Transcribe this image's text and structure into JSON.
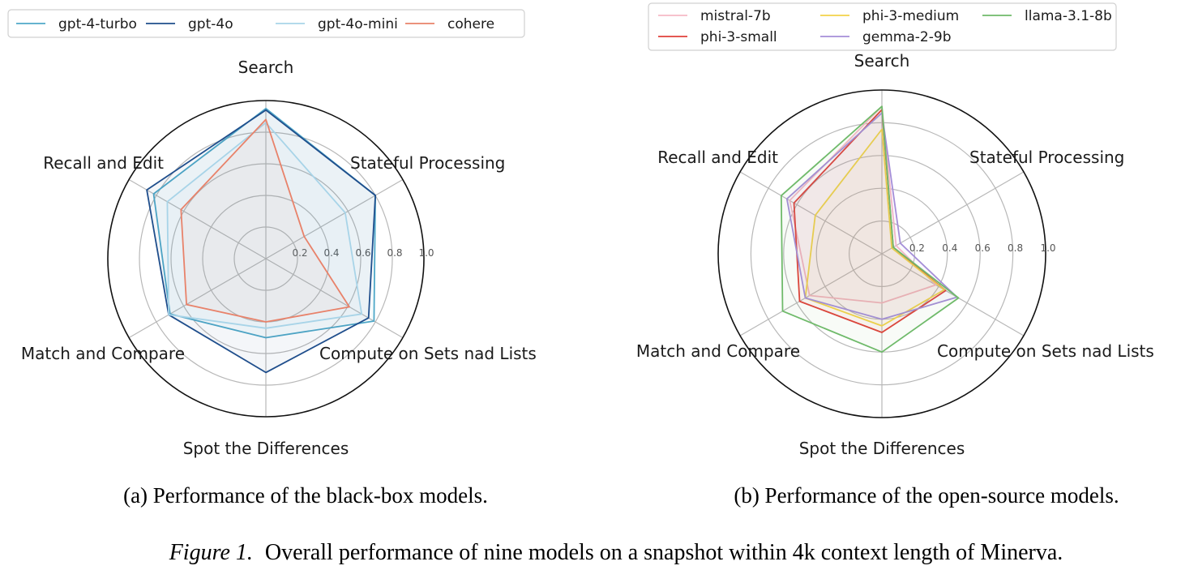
{
  "figure_caption": {
    "prefix": "Figure 1.",
    "text": "Overall performance of nine models on a snapshot within 4k context length of Minerva."
  },
  "chart_data": [
    {
      "type": "radar",
      "caption": "(a) Performance of the black-box models.",
      "axes": [
        "Search",
        "Stateful Processing",
        "Compute on Sets nad Lists",
        "Spot the Differences",
        "Match and Compare",
        "Recall and Edit"
      ],
      "rlim": [
        0,
        1.0
      ],
      "rticks": [
        "0.2",
        "0.4",
        "0.6",
        "0.8",
        "1.0"
      ],
      "grid": true,
      "legend_position": "top",
      "series": [
        {
          "name": "gpt-4-turbo",
          "color": "#4fa8c8",
          "values": [
            0.95,
            0.8,
            0.79,
            0.5,
            0.7,
            0.82
          ]
        },
        {
          "name": "gpt-4o",
          "color": "#1f4e8c",
          "values": [
            0.94,
            0.8,
            0.75,
            0.72,
            0.71,
            0.87
          ]
        },
        {
          "name": "gpt-4o-mini",
          "color": "#a8d4e8",
          "values": [
            0.86,
            0.58,
            0.7,
            0.44,
            0.71,
            0.72
          ]
        },
        {
          "name": "cohere",
          "color": "#e8826a",
          "values": [
            0.88,
            0.28,
            0.61,
            0.4,
            0.58,
            0.62
          ]
        }
      ]
    },
    {
      "type": "radar",
      "caption": "(b) Performance of the open-source models.",
      "axes": [
        "Search",
        "Stateful Processing",
        "Compute on Sets nad Lists",
        "Spot the Differences",
        "Match and Compare",
        "Recall and Edit"
      ],
      "rlim": [
        0,
        1.0
      ],
      "rticks": [
        "0.2",
        "0.4",
        "0.6",
        "0.8",
        "1.0"
      ],
      "grid": true,
      "legend_position": "top",
      "series": [
        {
          "name": "mistral-7b",
          "color": "#f6b9c6",
          "values": [
            0.9,
            0.1,
            0.38,
            0.3,
            0.51,
            0.65
          ]
        },
        {
          "name": "phi-3-small",
          "color": "#e0413a",
          "values": [
            0.88,
            0.08,
            0.45,
            0.48,
            0.58,
            0.62
          ]
        },
        {
          "name": "phi-3-medium",
          "color": "#f2d24a",
          "values": [
            0.76,
            0.07,
            0.44,
            0.44,
            0.54,
            0.47
          ]
        },
        {
          "name": "gemma-2-9b",
          "color": "#a58ed8",
          "values": [
            0.86,
            0.13,
            0.53,
            0.4,
            0.54,
            0.67
          ]
        },
        {
          "name": "llama-3.1-8b",
          "color": "#6fba6a",
          "values": [
            0.9,
            0.08,
            0.54,
            0.6,
            0.7,
            0.71
          ]
        }
      ]
    }
  ]
}
